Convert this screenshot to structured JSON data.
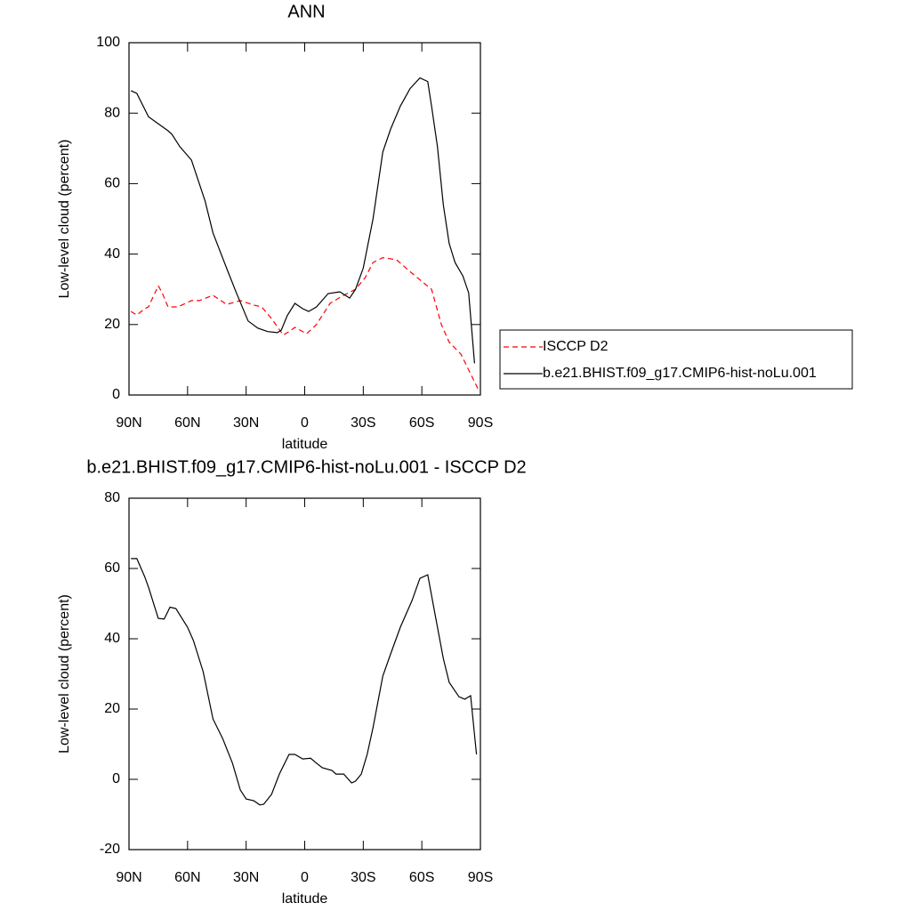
{
  "chart_data": [
    {
      "type": "line",
      "title": "ANN",
      "x_label": "latitude",
      "y_label": "Low-level cloud (percent)",
      "xlim": [
        90,
        -90
      ],
      "ylim": [
        0,
        100
      ],
      "xticks": [
        {
          "value": 90,
          "label": "90N"
        },
        {
          "value": 60,
          "label": "60N"
        },
        {
          "value": 30,
          "label": "30N"
        },
        0,
        {
          "value": -30,
          "label": "30S"
        },
        {
          "value": -60,
          "label": "60S"
        },
        {
          "value": -90,
          "label": "90S"
        }
      ],
      "yticks": [
        0,
        20,
        40,
        60,
        80,
        100
      ],
      "legend": "right",
      "series": [
        {
          "name": "ISCCP D2",
          "color": "#ff0000",
          "dashed": true,
          "x": [
            89,
            86,
            82,
            80,
            75,
            73,
            70,
            65,
            58,
            54,
            47,
            40,
            33,
            26,
            22,
            17,
            11,
            8,
            5,
            -1,
            -6,
            -13,
            -19,
            -26,
            -31,
            -35,
            -40,
            -47,
            -54,
            -61,
            -65,
            -70,
            -74,
            -80,
            -85,
            -89
          ],
          "values": [
            23.7,
            22.7,
            24.5,
            25,
            31,
            29,
            25,
            25,
            26.8,
            26.8,
            28.3,
            25.7,
            26.8,
            25.5,
            25,
            21.7,
            17,
            18,
            19.2,
            17.4,
            20,
            26,
            28,
            30,
            33.3,
            37.6,
            39,
            38.4,
            35,
            31.8,
            30,
            20,
            15,
            11.6,
            6,
            1.5
          ]
        },
        {
          "name": "b.e21.BHIST.f09_g17.CMIP6-hist-noLu.001",
          "color": "#000000",
          "dashed": false,
          "x": [
            89,
            86,
            80,
            75,
            70,
            68,
            64,
            58,
            51,
            47,
            40,
            35,
            29,
            24,
            19,
            14,
            12,
            9,
            5,
            1,
            -2,
            -6,
            -12,
            -18,
            -23,
            -26,
            -30,
            -35,
            -40,
            -44,
            -49,
            -54,
            -59,
            -63,
            -65,
            -68,
            -71,
            -74,
            -77,
            -81,
            -84,
            -87
          ],
          "values": [
            86.4,
            85.6,
            79,
            77,
            75,
            74,
            70.5,
            66.7,
            55,
            46,
            36,
            29,
            21,
            19,
            18,
            17.7,
            18.4,
            22.5,
            26,
            24.5,
            23.7,
            25,
            28.8,
            29.3,
            27.5,
            30,
            36,
            50,
            69,
            75.5,
            82,
            87,
            90,
            89,
            82,
            70.5,
            54,
            43,
            37.6,
            33.8,
            29,
            9
          ]
        }
      ]
    },
    {
      "type": "line",
      "title": "b.e21.BHIST.f09_g17.CMIP6-hist-noLu.001 - ISCCP D2",
      "x_label": "latitude",
      "y_label": "Low-level cloud (percent)",
      "xlim": [
        90,
        -90
      ],
      "ylim": [
        -20,
        80
      ],
      "xticks": [
        {
          "value": 90,
          "label": "90N"
        },
        {
          "value": 60,
          "label": "60N"
        },
        {
          "value": 30,
          "label": "30N"
        },
        0,
        {
          "value": -30,
          "label": "30S"
        },
        {
          "value": -60,
          "label": "60S"
        },
        {
          "value": -90,
          "label": "90S"
        }
      ],
      "yticks": [
        -20,
        0,
        20,
        40,
        60,
        80
      ],
      "series": [
        {
          "color": "#000000",
          "dashed": false,
          "x": [
            89,
            86,
            82,
            80,
            75,
            72,
            69,
            66,
            60,
            57,
            52,
            47,
            42,
            37,
            33,
            30,
            26,
            23,
            21,
            17,
            13,
            8,
            5,
            1,
            -3,
            -6,
            -9,
            -14,
            -16,
            -20,
            -24,
            -26,
            -29,
            -32,
            -35,
            -40,
            -44,
            -49,
            -55,
            -59,
            -63,
            -67,
            -71,
            -74,
            -79,
            -82,
            -85,
            -88
          ],
          "values": [
            62.8,
            62.8,
            57.7,
            54.7,
            45.8,
            45.6,
            49,
            48.6,
            43.3,
            39.5,
            30.6,
            17.2,
            11.6,
            4.6,
            -3,
            -5.6,
            -6.1,
            -7.3,
            -7.1,
            -4.3,
            1.5,
            7.1,
            7.1,
            5.8,
            6,
            4.6,
            3.3,
            2.5,
            1.5,
            1.5,
            -1,
            -0.5,
            1.5,
            7.1,
            14.7,
            29.4,
            35.7,
            43.3,
            50.9,
            57.2,
            58.2,
            46.3,
            34.4,
            27.6,
            23.5,
            22.8,
            23.8,
            7.1
          ]
        }
      ]
    }
  ]
}
